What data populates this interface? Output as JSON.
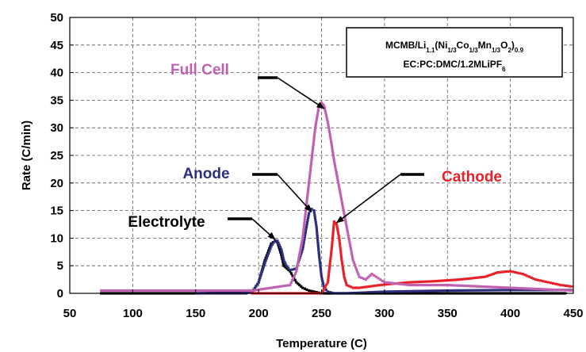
{
  "chart_data": {
    "type": "scatter",
    "xlabel": "Temperature (C)",
    "ylabel": "Rate (C/min)",
    "xlim": [
      50,
      450
    ],
    "ylim": [
      0,
      50
    ],
    "xticks": [
      50,
      100,
      150,
      200,
      250,
      300,
      350,
      400,
      450
    ],
    "yticks": [
      0,
      5,
      10,
      15,
      20,
      25,
      30,
      35,
      40,
      45,
      50
    ],
    "grid": "dashed",
    "legend_box": {
      "line1_main": "MCMB/Li",
      "line1_sub1": "1.1",
      "line1_mid1": "(Ni",
      "line1_sub2": "1/3",
      "line1_mid2": "Co",
      "line1_sub3": "1/3",
      "line1_mid3": "Mn",
      "line1_sub4": "1/3",
      "line1_mid4": "O",
      "line1_sub5": "2",
      "line1_mid5": ")",
      "line1_sub6": "0.9",
      "line2_main": "EC:PC:DMC/1.2MLiPF",
      "line2_sub": "6",
      "placement": "top-right"
    },
    "series": [
      {
        "name": "Electrolyte",
        "color": "#000000",
        "x": [
          75,
          100,
          150,
          195,
          200,
          205,
          210,
          213,
          215,
          218,
          220,
          225,
          230,
          235,
          240,
          250,
          300,
          350,
          400,
          445
        ],
        "y": [
          0,
          0,
          0,
          0.2,
          2,
          6,
          9,
          9.5,
          9.2,
          7,
          5,
          4,
          2,
          1,
          0.5,
          0,
          0,
          0,
          0,
          0
        ]
      },
      {
        "name": "Anode",
        "color": "#2e2e7e",
        "x": [
          150,
          190,
          195,
          200,
          205,
          210,
          213,
          215,
          218,
          220,
          222,
          225,
          230,
          235,
          238,
          240,
          242,
          244,
          246,
          248,
          250,
          252,
          255,
          260,
          270,
          300,
          350,
          400,
          450
        ],
        "y": [
          0,
          0,
          0.3,
          2,
          5.5,
          8.5,
          9.6,
          9.5,
          8,
          6,
          5,
          4.2,
          4.5,
          8,
          12,
          14.5,
          15.3,
          15,
          12,
          7,
          3,
          1,
          0.3,
          0,
          0,
          0.3,
          0.5,
          0.6,
          0.6
        ]
      },
      {
        "name": "Cathode",
        "color": "#e8202a",
        "x": [
          195,
          250,
          255,
          258,
          260,
          262,
          264,
          266,
          268,
          270,
          275,
          280,
          290,
          300,
          320,
          340,
          360,
          380,
          390,
          400,
          410,
          420,
          430,
          440,
          450
        ],
        "y": [
          0,
          0,
          2,
          8,
          13,
          12.5,
          10,
          6,
          3,
          1.5,
          1,
          1,
          1.3,
          1.6,
          2,
          2.2,
          2.5,
          3,
          3.8,
          4,
          3.5,
          2.5,
          2,
          1.5,
          1.2
        ]
      },
      {
        "name": "Full Cell",
        "color": "#c060b0",
        "x": [
          75,
          100,
          150,
          195,
          225,
          230,
          235,
          240,
          245,
          248,
          250,
          252,
          255,
          258,
          260,
          265,
          270,
          275,
          280,
          285,
          290,
          300,
          320,
          350,
          380,
          400,
          420,
          450
        ],
        "y": [
          0.5,
          0.5,
          0.5,
          0.5,
          1.5,
          4,
          10,
          20,
          30,
          34,
          34.5,
          34,
          31,
          27,
          24,
          18,
          12,
          6,
          3,
          2.5,
          3.5,
          2,
          1.5,
          1.5,
          1.2,
          1,
          0.8,
          0.5
        ]
      }
    ],
    "annotations": [
      {
        "label": "Full Cell",
        "color": "#c060b0",
        "target_x": 252,
        "target_y": 33.5
      },
      {
        "label": "Anode",
        "color": "#2e2e7e",
        "target_x": 242,
        "target_y": 14.8
      },
      {
        "label": "Cathode",
        "color": "#e8202a",
        "target_x": 262,
        "target_y": 12.8
      },
      {
        "label": "Electrolyte",
        "color": "#000000",
        "target_x": 213,
        "target_y": 9.8
      }
    ]
  }
}
